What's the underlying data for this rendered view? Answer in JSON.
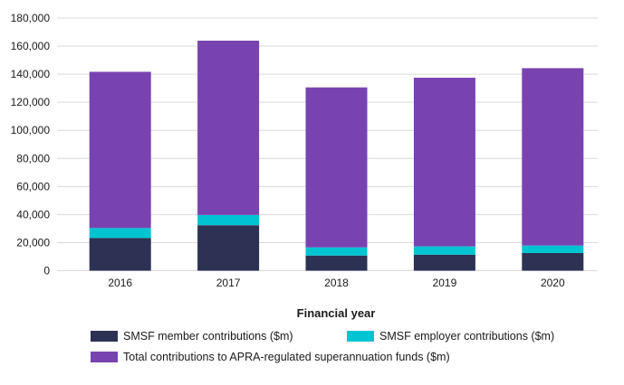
{
  "chart_data": {
    "type": "bar",
    "stacked": true,
    "title": "",
    "xlabel": "Financial year",
    "ylabel": "",
    "categories": [
      "2016",
      "2017",
      "2018",
      "2019",
      "2020"
    ],
    "series": [
      {
        "name": "SMSF member contributions ($m)",
        "color": "#2d3154",
        "values": [
          23300,
          32400,
          10800,
          11400,
          12600
        ]
      },
      {
        "name": "SMSF employer contributions ($m)",
        "color": "#00c4d2",
        "values": [
          7100,
          7300,
          5800,
          5900,
          5300
        ]
      },
      {
        "name": "Total contributions to APRA-regulated superannuation funds ($m)",
        "color": "#7843b1",
        "values": [
          111300,
          124200,
          114000,
          120200,
          126400
        ]
      }
    ],
    "stack_totals": [
      141700,
      163900,
      130600,
      137500,
      144300
    ],
    "ylim": [
      0,
      180000
    ],
    "yticks": [
      0,
      20000,
      40000,
      60000,
      80000,
      100000,
      120000,
      140000,
      160000,
      180000
    ],
    "ytick_labels": [
      "0",
      "20,000",
      "40,000",
      "60,000",
      "80,000",
      "100,000",
      "120,000",
      "140,000",
      "160,000",
      "180,000"
    ],
    "grid": true,
    "legend_position": "bottom"
  },
  "legend": {
    "items": [
      {
        "label": "SMSF member contributions ($m)",
        "color": "#2d3154"
      },
      {
        "label": "SMSF employer contributions ($m)",
        "color": "#00c4d2"
      },
      {
        "label": "Total contributions to APRA-regulated superannuation funds ($m)",
        "color": "#7843b1"
      }
    ]
  }
}
